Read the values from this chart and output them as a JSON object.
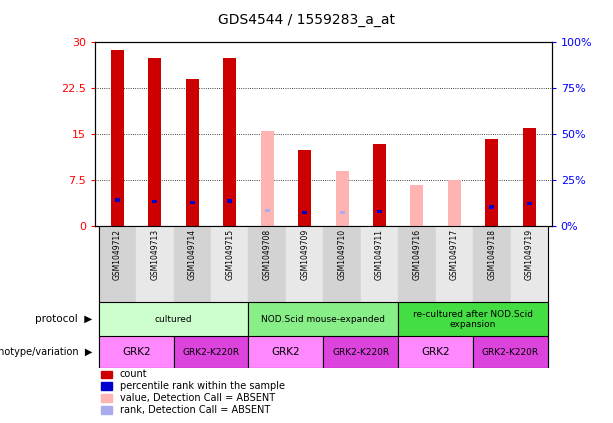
{
  "title": "GDS4544 / 1559283_a_at",
  "samples": [
    "GSM1049712",
    "GSM1049713",
    "GSM1049714",
    "GSM1049715",
    "GSM1049708",
    "GSM1049709",
    "GSM1049710",
    "GSM1049711",
    "GSM1049716",
    "GSM1049717",
    "GSM1049718",
    "GSM1049719"
  ],
  "count_values": [
    28.8,
    27.5,
    24.0,
    27.5,
    null,
    12.5,
    null,
    13.5,
    null,
    null,
    14.2,
    16.0
  ],
  "count_absent": [
    null,
    null,
    null,
    null,
    15.5,
    null,
    9.0,
    null,
    6.8,
    7.5,
    null,
    null
  ],
  "percentile_values": [
    14.2,
    13.5,
    13.0,
    13.8,
    null,
    7.5,
    null,
    8.0,
    null,
    null,
    10.5,
    12.5
  ],
  "percentile_absent": [
    null,
    null,
    null,
    null,
    8.5,
    null,
    7.5,
    null,
    null,
    null,
    null,
    null
  ],
  "ylim_left": [
    0,
    30
  ],
  "ylim_right": [
    0,
    100
  ],
  "yticks_left": [
    0,
    7.5,
    15,
    22.5,
    30
  ],
  "yticks_right": [
    0,
    25,
    50,
    75,
    100
  ],
  "ytick_labels_left": [
    "0",
    "7.5",
    "15",
    "22.5",
    "30"
  ],
  "ytick_labels_right": [
    "0%",
    "25%",
    "50%",
    "75%",
    "100%"
  ],
  "bar_color_red": "#cc0000",
  "bar_color_pink": "#ffb3b3",
  "dot_color_blue": "#0000cc",
  "dot_color_lightblue": "#aaaaee",
  "protocol_groups": [
    {
      "label": "cultured",
      "samples": [
        "GSM1049712",
        "GSM1049713",
        "GSM1049714",
        "GSM1049715"
      ],
      "color": "#ccffcc"
    },
    {
      "label": "NOD.Scid mouse-expanded",
      "samples": [
        "GSM1049708",
        "GSM1049709",
        "GSM1049710",
        "GSM1049711"
      ],
      "color": "#88ee88"
    },
    {
      "label": "re-cultured after NOD.Scid\nexpansion",
      "samples": [
        "GSM1049716",
        "GSM1049717",
        "GSM1049718",
        "GSM1049719"
      ],
      "color": "#44dd44"
    }
  ],
  "genotype_groups": [
    {
      "label": "GRK2",
      "samples": [
        "GSM1049712",
        "GSM1049713"
      ],
      "color": "#ff88ff"
    },
    {
      "label": "GRK2-K220R",
      "samples": [
        "GSM1049714",
        "GSM1049715"
      ],
      "color": "#dd44dd"
    },
    {
      "label": "GRK2",
      "samples": [
        "GSM1049708",
        "GSM1049709"
      ],
      "color": "#ff88ff"
    },
    {
      "label": "GRK2-K220R",
      "samples": [
        "GSM1049710",
        "GSM1049711"
      ],
      "color": "#dd44dd"
    },
    {
      "label": "GRK2",
      "samples": [
        "GSM1049716",
        "GSM1049717"
      ],
      "color": "#ff88ff"
    },
    {
      "label": "GRK2-K220R",
      "samples": [
        "GSM1049718",
        "GSM1049719"
      ],
      "color": "#dd44dd"
    }
  ]
}
